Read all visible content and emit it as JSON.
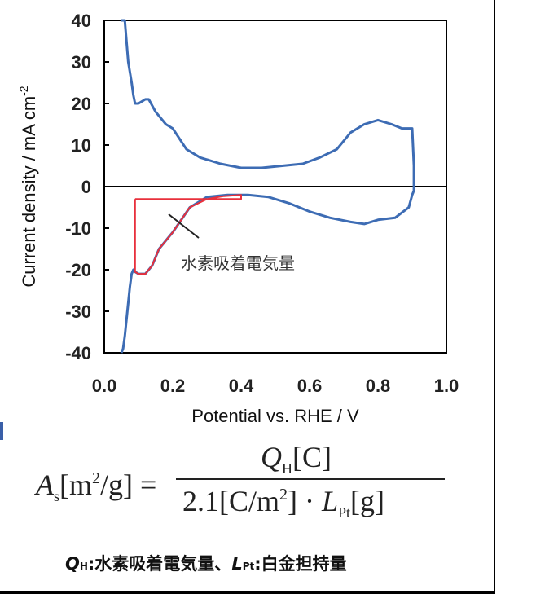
{
  "chart_data": {
    "type": "line",
    "xlabel": "Potential vs. RHE  / V",
    "ylabel": "Current density / mA cm",
    "ylabel_sup": "-2",
    "xlim": [
      0.0,
      1.0
    ],
    "ylim": [
      -40,
      40
    ],
    "x_ticks": [
      "0.0",
      "0.2",
      "0.4",
      "0.6",
      "0.8",
      "1.0"
    ],
    "y_ticks": [
      "40",
      "30",
      "20",
      "10",
      "0",
      "-10",
      "-20",
      "-30",
      "-40"
    ],
    "grid": false,
    "zero_line": true,
    "series": [
      {
        "color": "#3d6cb4",
        "x": [
          0.05,
          0.06,
          0.065,
          0.07,
          0.08,
          0.085,
          0.09,
          0.1,
          0.12,
          0.13,
          0.15,
          0.18,
          0.2,
          0.24,
          0.28,
          0.34,
          0.4,
          0.46,
          0.52,
          0.58,
          0.63,
          0.68,
          0.72,
          0.76,
          0.8,
          0.84,
          0.87,
          0.9,
          0.905,
          0.905,
          0.9,
          0.89,
          0.85,
          0.8,
          0.76,
          0.72,
          0.66,
          0.6,
          0.54,
          0.48,
          0.42,
          0.36,
          0.3,
          0.25,
          0.2,
          0.16,
          0.14,
          0.12,
          0.1,
          0.09,
          0.085,
          0.08,
          0.075,
          0.07,
          0.065,
          0.06,
          0.055,
          0.05
        ],
        "y": [
          40,
          40,
          35,
          30,
          25,
          22,
          20,
          20,
          21,
          21,
          18,
          15,
          14,
          9,
          7,
          5.5,
          4.5,
          4.5,
          5,
          5.5,
          7,
          9,
          13,
          15,
          16,
          15,
          14,
          14,
          5,
          -1,
          -2,
          -5,
          -7.5,
          -8,
          -9,
          -8.5,
          -7.5,
          -6,
          -4,
          -2.5,
          -2,
          -2,
          -2.5,
          -5,
          -11,
          -15,
          -19,
          -21,
          -21,
          -20.5,
          -20,
          -21,
          -24,
          -28,
          -32,
          -36,
          -39,
          -40
        ]
      },
      {
        "color": "#e8303c",
        "x": [
          0.09,
          0.09,
          0.1,
          0.12,
          0.14,
          0.16,
          0.2,
          0.25,
          0.3,
          0.35,
          0.4,
          0.4,
          0.09
        ],
        "y": [
          -3,
          -20.5,
          -21,
          -21,
          -19,
          -15,
          -11,
          -5,
          -3,
          -2.3,
          -2,
          -3,
          -3
        ]
      }
    ],
    "annotation": "水素吸着電気量"
  },
  "formula": {
    "lhs_symbol": "A",
    "lhs_sub": "s",
    "lhs_units": "[m",
    "lhs_units_sup": "2",
    "lhs_units_end": "/g] =",
    "num_symbol": "Q",
    "num_sub": "H",
    "num_units": "[C]",
    "den_const": "2.1[C/m",
    "den_sup": "2",
    "den_mid": "] · ",
    "den_symbol": "L",
    "den_sub": "Pt",
    "den_units": "[g]"
  },
  "caption": {
    "q_symbol": "Q",
    "q_sub": "H",
    "q_text": ":水素吸着電気量、",
    "l_symbol": "L",
    "l_sub": "Pt",
    "l_text": ":白金担持量"
  }
}
